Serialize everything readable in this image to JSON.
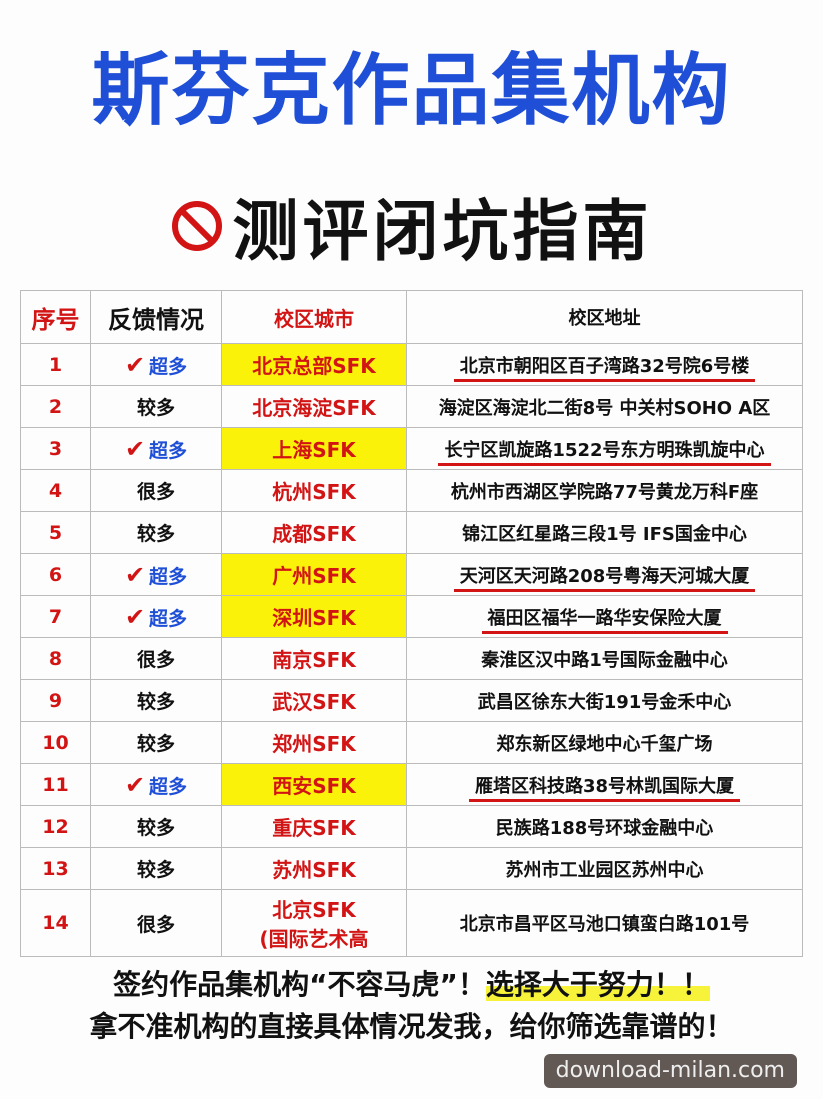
{
  "title": "斯芬克作品集机构",
  "subtitle": "测评闭坑指南",
  "colors": {
    "title": "#1f4fd6",
    "accent": "#d21414",
    "highlight": "#fbf20a"
  },
  "table": {
    "headers": [
      "序号",
      "反馈情况",
      "校区城市",
      "校区地址"
    ],
    "rows": [
      {
        "no": "1",
        "feedback": "超多",
        "check": true,
        "city": "北京总部SFK",
        "address": "北京市朝阳区百子湾路32号院6号楼",
        "highlight": true
      },
      {
        "no": "2",
        "feedback": "较多",
        "check": false,
        "city": "北京海淀SFK",
        "address": "海淀区海淀北二街8号 中关村SOHO A区",
        "highlight": false
      },
      {
        "no": "3",
        "feedback": "超多",
        "check": true,
        "city": "上海SFK",
        "address": "长宁区凯旋路1522号东方明珠凯旋中心",
        "highlight": true
      },
      {
        "no": "4",
        "feedback": "很多",
        "check": false,
        "city": "杭州SFK",
        "address": "杭州市西湖区学院路77号黄龙万科F座",
        "highlight": false
      },
      {
        "no": "5",
        "feedback": "较多",
        "check": false,
        "city": "成都SFK",
        "address": "锦江区红星路三段1号 IFS国金中心",
        "highlight": false
      },
      {
        "no": "6",
        "feedback": "超多",
        "check": true,
        "city": "广州SFK",
        "address": "天河区天河路208号粤海天河城大厦",
        "highlight": true
      },
      {
        "no": "7",
        "feedback": "超多",
        "check": true,
        "city": "深圳SFK",
        "address": "福田区福华一路华安保险大厦",
        "highlight": true
      },
      {
        "no": "8",
        "feedback": "很多",
        "check": false,
        "city": "南京SFK",
        "address": "秦淮区汉中路1号国际金融中心",
        "highlight": false
      },
      {
        "no": "9",
        "feedback": "较多",
        "check": false,
        "city": "武汉SFK",
        "address": "武昌区徐东大街191号金禾中心",
        "highlight": false
      },
      {
        "no": "10",
        "feedback": "较多",
        "check": false,
        "city": "郑州SFK",
        "address": "郑东新区绿地中心千玺广场",
        "highlight": false
      },
      {
        "no": "11",
        "feedback": "超多",
        "check": true,
        "city": "西安SFK",
        "address": "雁塔区科技路38号林凯国际大厦",
        "highlight": true
      },
      {
        "no": "12",
        "feedback": "较多",
        "check": false,
        "city": "重庆SFK",
        "address": "民族路188号环球金融中心",
        "highlight": false
      },
      {
        "no": "13",
        "feedback": "较多",
        "check": false,
        "city": "苏州SFK",
        "address": "苏州市工业园区苏州中心",
        "highlight": false
      },
      {
        "no": "14",
        "feedback": "很多",
        "check": false,
        "city": "北京SFK\n(国际艺术高",
        "address": "北京市昌平区马池口镇蛮白路101号",
        "highlight": false
      }
    ]
  },
  "footer": {
    "line1a": "签约作品集机构“不容马虎”！",
    "line1b": "选择大于努力！！",
    "line2": "拿不准机构的直接具体情况发我，给你筛选靠谱的！"
  },
  "watermark": "download-milan.com"
}
